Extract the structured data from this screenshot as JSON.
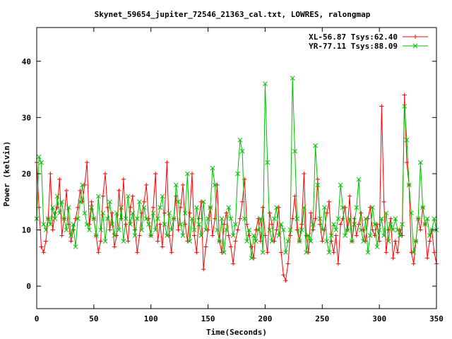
{
  "chart_data": {
    "type": "line",
    "title": "Skynet_59654_jupiter_72546_21363_cal.txt, LOWRES, ralongmap",
    "xlabel": "Time(Seconds)",
    "ylabel": "Power (kelvin)",
    "xlim": [
      0,
      350
    ],
    "ylim": [
      -4,
      46
    ],
    "xticks": [
      0,
      50,
      100,
      150,
      200,
      250,
      300,
      350
    ],
    "yticks": [
      0,
      10,
      20,
      30,
      40
    ],
    "grid": false,
    "legend_position": "top-right",
    "series": [
      {
        "name": "XL-56.87 Tsys:62.40",
        "color": "#ff0000",
        "marker": "plus",
        "x": [
          0,
          2,
          4,
          6,
          8,
          10,
          12,
          14,
          16,
          18,
          20,
          22,
          24,
          26,
          28,
          30,
          32,
          34,
          36,
          38,
          40,
          42,
          44,
          46,
          48,
          50,
          52,
          54,
          56,
          58,
          60,
          62,
          64,
          66,
          68,
          70,
          72,
          74,
          76,
          78,
          80,
          82,
          84,
          86,
          88,
          90,
          92,
          94,
          96,
          98,
          100,
          102,
          104,
          106,
          108,
          110,
          112,
          114,
          116,
          118,
          120,
          122,
          124,
          126,
          128,
          130,
          132,
          134,
          136,
          138,
          140,
          142,
          144,
          146,
          148,
          150,
          152,
          154,
          156,
          158,
          160,
          162,
          164,
          166,
          168,
          170,
          172,
          174,
          176,
          178,
          180,
          182,
          184,
          186,
          188,
          190,
          192,
          194,
          196,
          198,
          200,
          202,
          204,
          206,
          208,
          210,
          212,
          214,
          216,
          218,
          220,
          222,
          224,
          226,
          228,
          230,
          232,
          234,
          236,
          238,
          240,
          242,
          244,
          246,
          248,
          250,
          252,
          254,
          256,
          258,
          260,
          262,
          264,
          266,
          268,
          270,
          272,
          274,
          276,
          278,
          280,
          282,
          284,
          286,
          288,
          290,
          292,
          294,
          296,
          298,
          300,
          302,
          304,
          306,
          308,
          310,
          312,
          314,
          316,
          318,
          320,
          322,
          324,
          326,
          328,
          330,
          332,
          334,
          336,
          338,
          340,
          342,
          344,
          346,
          348,
          350
        ],
        "y": [
          22,
          14,
          7,
          6,
          8,
          12,
          20,
          10,
          13,
          14,
          19,
          9,
          12,
          17,
          11,
          8,
          10,
          12,
          14,
          17,
          15,
          18,
          22,
          11,
          15,
          12,
          9,
          6,
          8,
          16,
          20,
          14,
          10,
          13,
          7,
          9,
          17,
          12,
          19,
          11,
          8,
          14,
          16,
          10,
          6,
          9,
          13,
          15,
          18,
          12,
          9,
          14,
          20,
          8,
          11,
          7,
          13,
          22,
          9,
          6,
          12,
          16,
          10,
          14,
          18,
          11,
          8,
          13,
          20,
          9,
          6,
          12,
          15,
          3,
          7,
          10,
          14,
          9,
          12,
          18,
          8,
          6,
          11,
          13,
          9,
          7,
          4,
          8,
          10,
          12,
          15,
          19,
          11,
          9,
          7,
          5,
          10,
          12,
          8,
          14,
          9,
          6,
          13,
          11,
          8,
          10,
          14,
          6,
          2,
          1,
          4,
          9,
          12,
          16,
          10,
          8,
          11,
          20,
          9,
          6,
          13,
          10,
          12,
          19,
          11,
          8,
          10,
          13,
          15,
          8,
          6,
          9,
          4,
          11,
          12,
          14,
          10,
          16,
          8,
          12,
          9,
          11,
          13,
          10,
          8,
          12,
          14,
          10,
          9,
          11,
          8,
          32,
          15,
          6,
          10,
          12,
          5,
          8,
          6,
          10,
          9,
          34,
          22,
          18,
          6,
          4,
          8,
          12,
          10,
          14,
          11,
          5,
          8,
          10,
          6,
          4
        ]
      },
      {
        "name": "YR-77.11 Tsys:88.09",
        "color": "#00c000",
        "marker": "cross",
        "x": [
          0,
          2,
          4,
          6,
          8,
          10,
          12,
          14,
          16,
          18,
          20,
          22,
          24,
          26,
          28,
          30,
          32,
          34,
          36,
          38,
          40,
          42,
          44,
          46,
          48,
          50,
          52,
          54,
          56,
          58,
          60,
          62,
          64,
          66,
          68,
          70,
          72,
          74,
          76,
          78,
          80,
          82,
          84,
          86,
          88,
          90,
          92,
          94,
          96,
          98,
          100,
          102,
          104,
          106,
          108,
          110,
          112,
          114,
          116,
          118,
          120,
          122,
          124,
          126,
          128,
          130,
          132,
          134,
          136,
          138,
          140,
          142,
          144,
          146,
          148,
          150,
          152,
          154,
          156,
          158,
          160,
          162,
          164,
          166,
          168,
          170,
          172,
          174,
          176,
          178,
          180,
          182,
          184,
          186,
          188,
          190,
          192,
          194,
          196,
          198,
          200,
          202,
          204,
          206,
          208,
          210,
          212,
          214,
          216,
          218,
          220,
          222,
          224,
          226,
          228,
          230,
          232,
          234,
          236,
          238,
          240,
          242,
          244,
          246,
          248,
          250,
          252,
          254,
          256,
          258,
          260,
          262,
          264,
          266,
          268,
          270,
          272,
          274,
          276,
          278,
          280,
          282,
          284,
          286,
          288,
          290,
          292,
          294,
          296,
          298,
          300,
          302,
          304,
          306,
          308,
          310,
          312,
          314,
          316,
          318,
          320,
          322,
          324,
          326,
          328,
          330,
          332,
          334,
          336,
          338,
          340,
          342,
          344,
          346,
          348,
          350
        ],
        "y": [
          12,
          23,
          22,
          11,
          10,
          12,
          11,
          14,
          12,
          16,
          13,
          15,
          12,
          10,
          14,
          9,
          11,
          7,
          12,
          15,
          18,
          13,
          11,
          10,
          14,
          12,
          9,
          16,
          10,
          13,
          8,
          12,
          15,
          11,
          9,
          13,
          10,
          14,
          8,
          12,
          16,
          11,
          13,
          9,
          12,
          15,
          10,
          14,
          12,
          11,
          9,
          13,
          10,
          12,
          14,
          16,
          11,
          9,
          13,
          10,
          12,
          18,
          15,
          11,
          9,
          13,
          20,
          8,
          12,
          10,
          14,
          11,
          9,
          15,
          10,
          12,
          14,
          21,
          18,
          10,
          8,
          12,
          6,
          10,
          14,
          12,
          9,
          11,
          20,
          26,
          24,
          12,
          8,
          10,
          5,
          9,
          8,
          10,
          12,
          6,
          36,
          22,
          10,
          8,
          12,
          14,
          9,
          11,
          10,
          6,
          8,
          10,
          37,
          24,
          12,
          8,
          10,
          14,
          6,
          9,
          8,
          11,
          25,
          18,
          12,
          10,
          14,
          8,
          6,
          9,
          11,
          10,
          12,
          18,
          14,
          9,
          10,
          12,
          8,
          11,
          14,
          19,
          10,
          8,
          12,
          6,
          9,
          14,
          11,
          7,
          10,
          12,
          9,
          13,
          8,
          11,
          10,
          12,
          10,
          9,
          11,
          32,
          26,
          18,
          13,
          6,
          8,
          12,
          22,
          14,
          11,
          12,
          9,
          10,
          12,
          10
        ]
      }
    ]
  }
}
